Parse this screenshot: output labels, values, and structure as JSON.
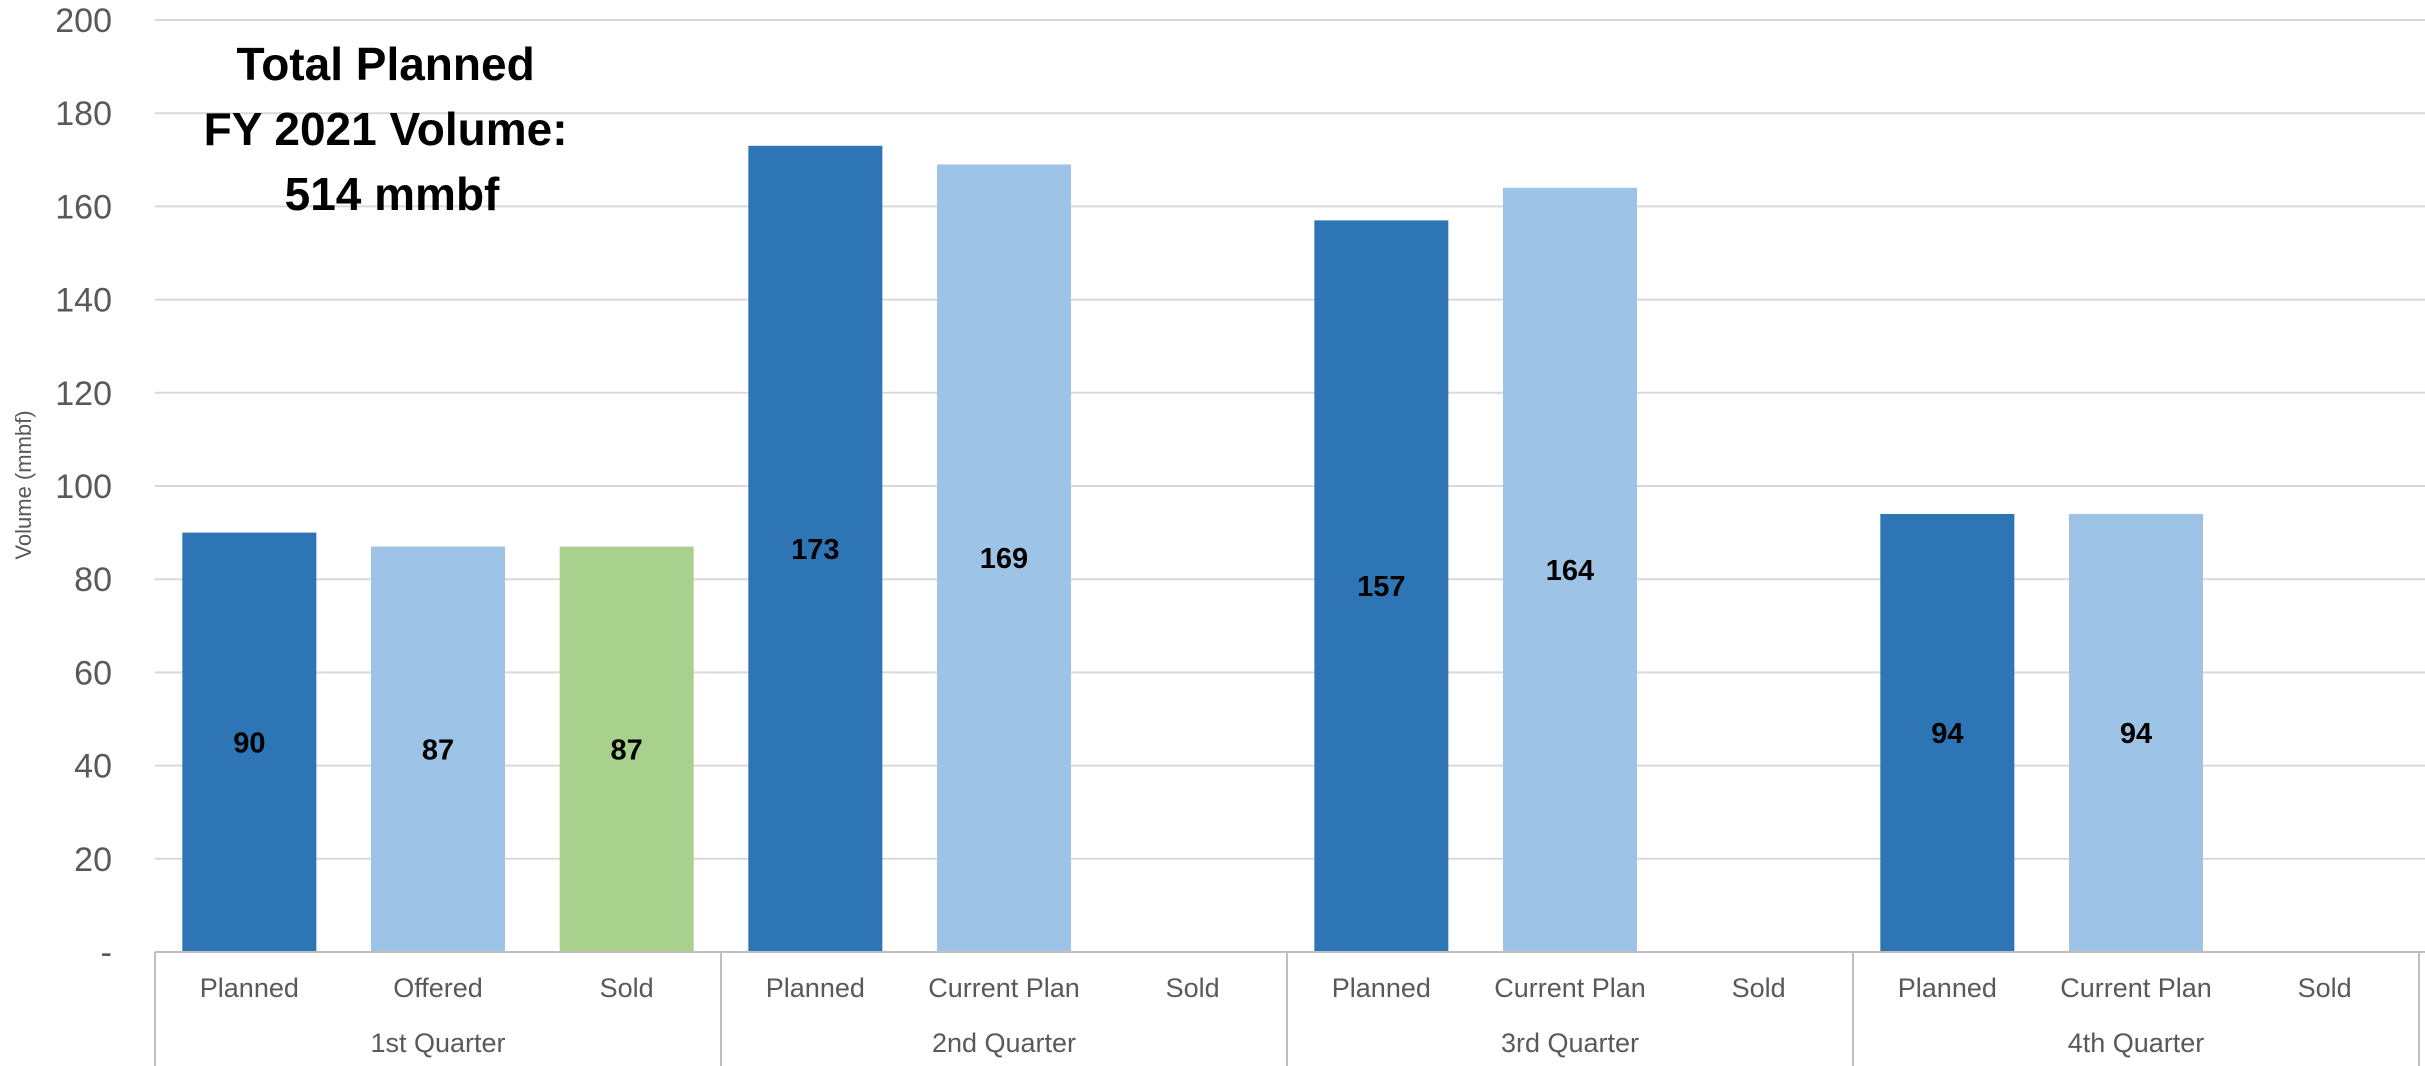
{
  "chart_data": {
    "type": "bar",
    "ylabel": "Volume (mmbf)",
    "ylim": [
      0,
      200
    ],
    "yticks": [
      "-",
      "20",
      "40",
      "60",
      "80",
      "100",
      "120",
      "140",
      "160",
      "180",
      "200"
    ],
    "grid": true,
    "annotation": [
      "Total Planned",
      "FY 2021 Volume:",
      "514 mmbf"
    ],
    "groups": [
      {
        "name": "1st Quarter",
        "bars": [
          {
            "label": "Planned",
            "value": 90,
            "data_label": "90",
            "color": "#2E75B6"
          },
          {
            "label": "Offered",
            "value": 87,
            "data_label": "87",
            "color": "#9DC3E6"
          },
          {
            "label": "Sold",
            "value": 87,
            "data_label": "87",
            "color": "#A9D18E"
          }
        ]
      },
      {
        "name": "2nd Quarter",
        "bars": [
          {
            "label": "Planned",
            "value": 173,
            "data_label": "173",
            "color": "#2E75B6"
          },
          {
            "label": "Current Plan",
            "value": 169,
            "data_label": "169",
            "color": "#9DC3E6"
          },
          {
            "label": "Sold",
            "value": 0,
            "data_label": "",
            "color": "#A9D18E"
          }
        ]
      },
      {
        "name": "3rd Quarter",
        "bars": [
          {
            "label": "Planned",
            "value": 157,
            "data_label": "157",
            "color": "#2E75B6"
          },
          {
            "label": "Current Plan",
            "value": 164,
            "data_label": "164",
            "color": "#9DC3E6"
          },
          {
            "label": "Sold",
            "value": 0,
            "data_label": "",
            "color": "#A9D18E"
          }
        ]
      },
      {
        "name": "4th Quarter",
        "bars": [
          {
            "label": "Planned",
            "value": 94,
            "data_label": "94",
            "color": "#2E75B6"
          },
          {
            "label": "Current Plan",
            "value": 94,
            "data_label": "94",
            "color": "#9DC3E6"
          },
          {
            "label": "Sold",
            "value": 0,
            "data_label": "",
            "color": "#A9D18E"
          }
        ]
      }
    ]
  }
}
